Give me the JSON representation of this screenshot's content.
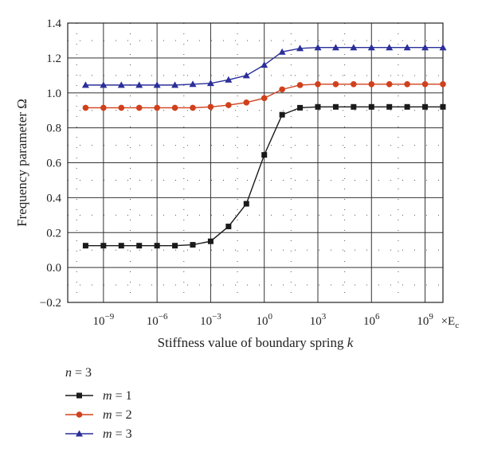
{
  "chart_data": {
    "type": "line",
    "xlabel": "Stiffness value of boundary spring",
    "xlabel_symbol": "k",
    "ylabel": "Frequency parameter Ω",
    "x_unit": "×E",
    "x_unit_sub": "c",
    "x_scale": "log",
    "xlim": [
      1e-11,
      10000000000.0
    ],
    "ylim": [
      -0.2,
      1.4
    ],
    "grid": true,
    "yticks": [
      "−0.2",
      "0.0",
      "0.2",
      "0.4",
      "0.6",
      "0.8",
      "1.0",
      "1.2",
      "1.4"
    ],
    "ytick_values": [
      -0.2,
      0.0,
      0.2,
      0.4,
      0.6,
      0.8,
      1.0,
      1.2,
      1.4
    ],
    "xticks": [
      {
        "value": 1e-09,
        "base": "10",
        "exp": "−9"
      },
      {
        "value": 1e-06,
        "base": "10",
        "exp": "−6"
      },
      {
        "value": 0.001,
        "base": "10",
        "exp": "−3"
      },
      {
        "value": 1,
        "base": "10",
        "exp": "0"
      },
      {
        "value": 1000.0,
        "base": "10",
        "exp": "3"
      },
      {
        "value": 1000000.0,
        "base": "10",
        "exp": "6"
      },
      {
        "value": 1000000000.0,
        "base": "10",
        "exp": "9"
      }
    ],
    "x": [
      1e-10,
      1e-09,
      1e-08,
      1e-07,
      1e-06,
      1e-05,
      0.0001,
      0.001,
      0.01,
      0.1,
      1,
      10.0,
      100.0,
      1000.0,
      10000.0,
      100000.0,
      1000000.0,
      10000000.0,
      100000000.0,
      1000000000.0,
      10000000000.0
    ],
    "legend_header": {
      "var": "n",
      "rest": " = 3"
    },
    "legend_placement": "bottom-left",
    "series": [
      {
        "name": "m = 1",
        "var": "m",
        "rest": " = 1",
        "color": "#1a1a1a",
        "marker": "square",
        "values": [
          0.125,
          0.125,
          0.125,
          0.125,
          0.125,
          0.125,
          0.13,
          0.15,
          0.235,
          0.365,
          0.645,
          0.875,
          0.915,
          0.92,
          0.92,
          0.92,
          0.92,
          0.92,
          0.92,
          0.92,
          0.92
        ]
      },
      {
        "name": "m = 2",
        "var": "m",
        "rest": " = 2",
        "color": "#d0401c",
        "marker": "circle",
        "values": [
          0.915,
          0.915,
          0.915,
          0.915,
          0.915,
          0.915,
          0.915,
          0.92,
          0.93,
          0.945,
          0.97,
          1.02,
          1.045,
          1.05,
          1.05,
          1.05,
          1.05,
          1.05,
          1.05,
          1.05,
          1.05
        ]
      },
      {
        "name": "m = 3",
        "var": "m",
        "rest": " = 3",
        "color": "#2b2f9a",
        "marker": "triangle",
        "values": [
          1.045,
          1.045,
          1.045,
          1.045,
          1.045,
          1.045,
          1.05,
          1.055,
          1.075,
          1.1,
          1.16,
          1.235,
          1.255,
          1.26,
          1.26,
          1.26,
          1.26,
          1.26,
          1.26,
          1.26,
          1.26
        ]
      }
    ]
  }
}
